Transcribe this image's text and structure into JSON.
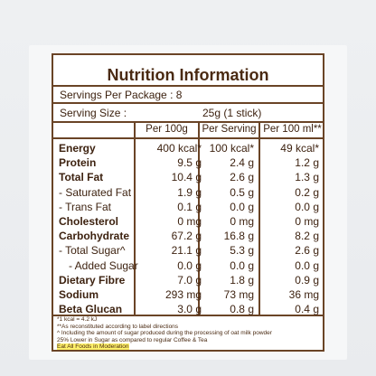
{
  "title": "Nutrition Information",
  "servings_per_package": "Servings Per Package :  8",
  "serving_size_label": "Serving Size :",
  "serving_size_value": "25g (1 stick)",
  "columns": [
    "Per 100g",
    "Per Serving",
    "Per 100 ml**"
  ],
  "rows": [
    {
      "name": "Energy",
      "v1": "400 kcal*",
      "v2": "100 kcal*",
      "v3": "49 kcal*"
    },
    {
      "name": "Protein",
      "v1": "9.5 g",
      "v2": "2.4 g",
      "v3": "1.2 g"
    },
    {
      "name": "Total Fat",
      "v1": "10.4 g",
      "v2": "2.6 g",
      "v3": "1.3 g"
    },
    {
      "name": "- Saturated Fat",
      "v1": "1.9 g",
      "v2": "0.5 g",
      "v3": "0.2 g"
    },
    {
      "name": "- Trans Fat",
      "v1": "0.1 g",
      "v2": "0.0 g",
      "v3": "0.0 g"
    },
    {
      "name": "Cholesterol",
      "v1": "0 mg",
      "v2": "0 mg",
      "v3": "0 mg"
    },
    {
      "name": "Carbohydrate",
      "v1": "67.2 g",
      "v2": "16.8 g",
      "v3": "8.2 g"
    },
    {
      "name": "- Total Sugar^",
      "v1": "21.1 g",
      "v2": "5.3 g",
      "v3": "2.6 g"
    },
    {
      "name": "- Added Sugar",
      "v1": "0.0 g",
      "v2": "0.0 g",
      "v3": "0.0 g"
    },
    {
      "name": "Dietary Fibre",
      "v1": "7.0 g",
      "v2": "1.8 g",
      "v3": "0.9 g"
    },
    {
      "name": "Sodium",
      "v1": "293 mg",
      "v2": "73 mg",
      "v3": "36 mg"
    },
    {
      "name": "Beta Glucan",
      "v1": "3.0 g",
      "v2": "0.8 g",
      "v3": "0.4 g"
    }
  ],
  "footnotes": [
    "*1 kcal = 4.2 kJ",
    "**As reconstituted according to label directions",
    "^ Including the amount of sugar produced during the processing of oat milk powder",
    "25% Lower in Sugar as compared to regular Coffee & Tea",
    "Eat All Foods in Moderation"
  ]
}
